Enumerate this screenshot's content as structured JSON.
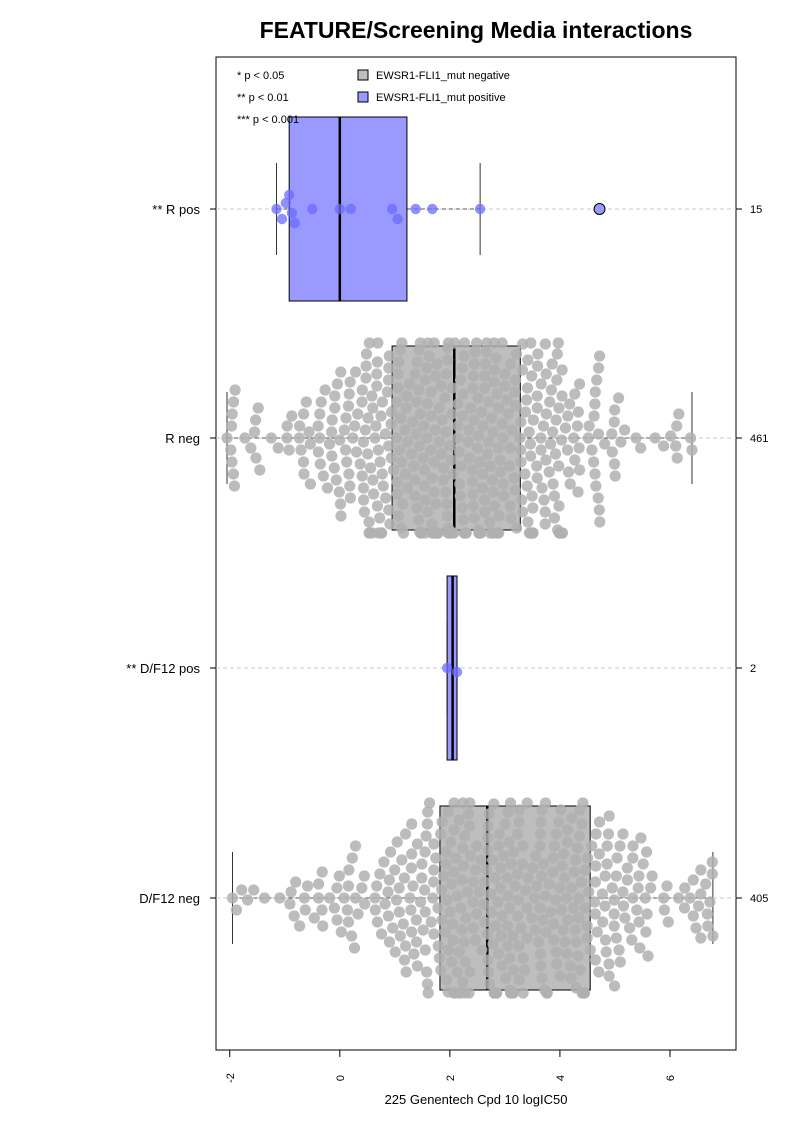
{
  "chart_data": {
    "type": "box",
    "title": "FEATURE/Screening Media interactions",
    "xlabel": "225 Genentech Cpd 10 logIC50",
    "xlim": [
      -2.25,
      7.2
    ],
    "x_ticks": [
      -2,
      0,
      2,
      4,
      6
    ],
    "x_tick_labels": [
      "-2",
      "0",
      "2",
      "4",
      "6"
    ],
    "grid": "dashed horizontal lines at each category",
    "significance_legend": [
      "* p < 0.05",
      "** p < 0.01",
      "*** p < 0.001"
    ],
    "legend": [
      {
        "label": "EWSR1-FLI1_mut negative",
        "color": "#bebebe"
      },
      {
        "label": "EWSR1-FLI1_mut positive",
        "color": "#9999ff"
      }
    ],
    "legend_placement": "top-left",
    "colors": {
      "negative_box": "#bebebe",
      "negative_points": "#b0b0b0",
      "positive_box": "#9999ff",
      "positive_points": "#6b6bff"
    },
    "categories": [
      {
        "label": "** R pos",
        "group": "positive",
        "n": "15",
        "box": {
          "whisker_low": -1.15,
          "q1": -0.92,
          "median": 0.0,
          "q3": 1.22,
          "whisker_high": 2.55
        },
        "outliers": [
          4.72
        ],
        "points": [
          -1.15,
          -1.05,
          -0.98,
          -0.92,
          -0.87,
          -0.82,
          -0.5,
          0.0,
          0.2,
          0.95,
          1.05,
          1.38,
          1.68,
          2.55,
          4.72
        ]
      },
      {
        "label": "R neg",
        "group": "negative",
        "n": "461",
        "box": {
          "whisker_low": -2.05,
          "q1": 0.95,
          "median": 2.08,
          "q3": 3.28,
          "whisker_high": 6.4
        },
        "outliers": [],
        "point_distribution": {
          "min": -2.05,
          "max": 6.4,
          "center": 2.08,
          "spread": 1.75
        }
      },
      {
        "label": "** D/F12 pos",
        "group": "positive",
        "n": "2",
        "box": {
          "whisker_low": 1.95,
          "q1": 1.95,
          "median": 2.05,
          "q3": 2.13,
          "whisker_high": 2.13
        },
        "outliers": [],
        "points": [
          1.95,
          2.13
        ]
      },
      {
        "label": "D/F12 neg",
        "group": "negative",
        "n": "405",
        "box": {
          "whisker_low": -1.95,
          "q1": 1.82,
          "median": 2.68,
          "q3": 4.55,
          "whisker_high": 6.78
        },
        "outliers": [],
        "point_distribution": {
          "min": -1.95,
          "max": 6.78,
          "center": 2.85,
          "spread": 1.75
        }
      }
    ]
  }
}
